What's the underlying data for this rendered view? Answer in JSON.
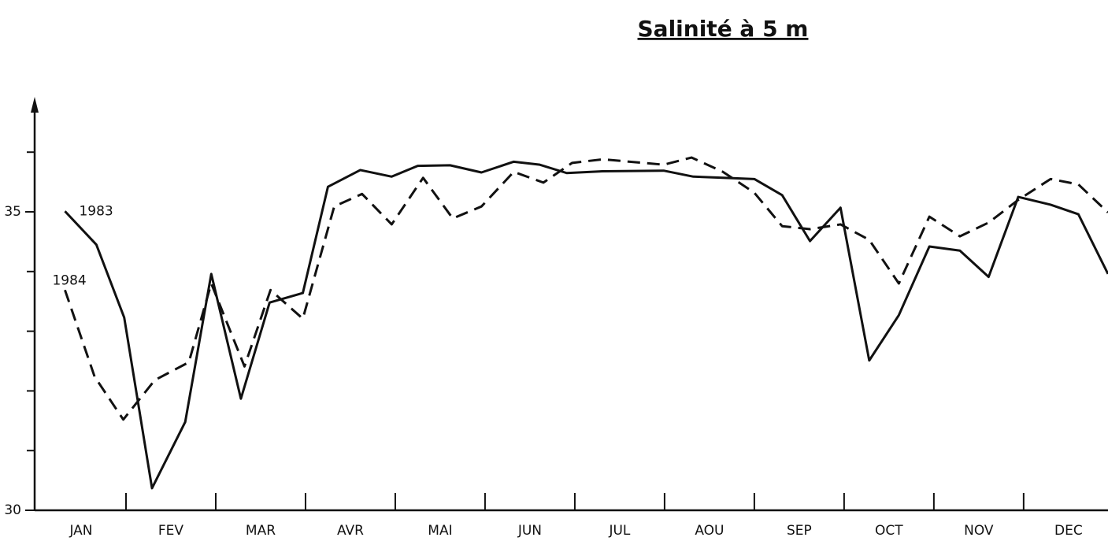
{
  "chart_data": {
    "type": "line",
    "title": "Salinité à 5 m",
    "categories": [
      "JAN",
      "FEV",
      "MAR",
      "AVR",
      "MAI",
      "JUN",
      "JUL",
      "AOU",
      "SEP",
      "OCT",
      "NOV",
      "DEC"
    ],
    "xlim": [
      0,
      11.94
    ],
    "xticks": [
      1,
      2,
      3,
      4,
      5,
      6,
      7,
      8,
      9,
      10,
      11
    ],
    "ylim": [
      30,
      36.9
    ],
    "yticks": [
      30,
      35
    ],
    "yminor": [
      31,
      32,
      33,
      34,
      36
    ],
    "series": [
      {
        "name": "1983",
        "color": "#111111",
        "dash": false,
        "x": [
          0.32,
          0.67,
          0.98,
          1.29,
          1.66,
          1.95,
          2.28,
          2.6,
          2.97,
          3.25,
          3.61,
          3.96,
          4.25,
          4.61,
          4.96,
          5.32,
          5.61,
          5.91,
          6.31,
          6.99,
          7.32,
          7.65,
          8.0,
          8.31,
          8.62,
          8.96,
          9.28,
          9.61,
          9.95,
          10.29,
          10.61,
          10.94,
          11.3,
          11.61,
          11.94
        ],
        "values": [
          35.01,
          34.45,
          33.23,
          30.37,
          31.48,
          33.96,
          31.87,
          33.48,
          33.64,
          35.42,
          35.7,
          35.59,
          35.77,
          35.78,
          35.66,
          35.84,
          35.79,
          35.65,
          35.68,
          35.69,
          35.59,
          35.57,
          35.55,
          35.28,
          34.51,
          35.07,
          32.51,
          33.27,
          34.42,
          34.35,
          33.91,
          35.25,
          35.12,
          34.96,
          33.96
        ]
      },
      {
        "name": "1984",
        "color": "#111111",
        "dash": true,
        "x": [
          0.32,
          0.65,
          0.97,
          1.32,
          1.7,
          1.95,
          2.32,
          2.61,
          2.97,
          3.32,
          3.63,
          3.96,
          4.31,
          4.64,
          4.96,
          5.32,
          5.65,
          5.97,
          6.31,
          6.99,
          7.3,
          7.65,
          8.0,
          8.31,
          8.62,
          8.96,
          9.28,
          9.61,
          9.95,
          10.29,
          10.61,
          10.94,
          11.3,
          11.61,
          11.94
        ],
        "values": [
          33.69,
          32.24,
          31.52,
          32.18,
          32.48,
          33.8,
          32.41,
          33.69,
          33.21,
          35.09,
          35.3,
          34.79,
          35.57,
          34.89,
          35.09,
          35.67,
          35.49,
          35.82,
          35.88,
          35.79,
          35.91,
          35.67,
          35.32,
          34.76,
          34.71,
          34.79,
          34.53,
          33.8,
          34.92,
          34.59,
          34.82,
          35.2,
          35.55,
          35.46,
          34.99
        ]
      }
    ]
  }
}
